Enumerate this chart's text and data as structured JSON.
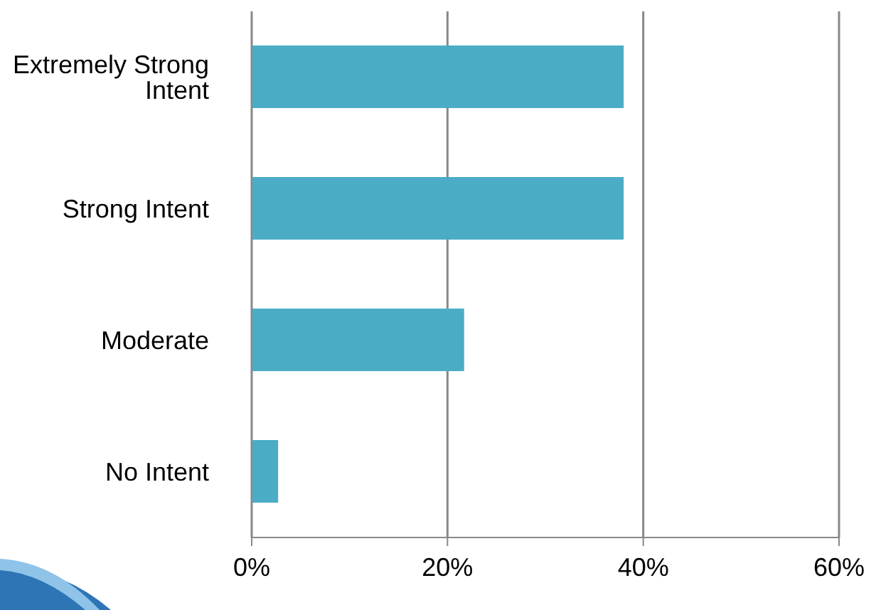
{
  "chart_data": {
    "type": "bar",
    "orientation": "horizontal",
    "categories": [
      "Extremely Strong Intent",
      "Strong Intent",
      "Moderate",
      "No Intent"
    ],
    "values": [
      38,
      38,
      21.7,
      2.7
    ],
    "color": "#4bacc6",
    "xlim": [
      0,
      60
    ],
    "xticks": [
      {
        "value": 0,
        "label": "0%"
      },
      {
        "value": 20,
        "label": "20%"
      },
      {
        "value": 40,
        "label": "40%"
      },
      {
        "value": 60,
        "label": "60%"
      }
    ],
    "grid": "x"
  }
}
